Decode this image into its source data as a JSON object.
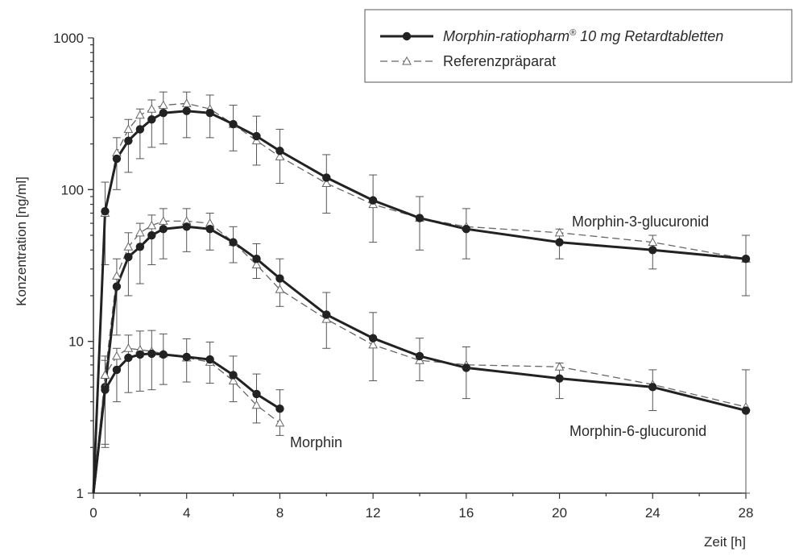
{
  "chart_data": {
    "type": "line",
    "yscale": "log",
    "xlim": [
      0,
      28
    ],
    "ylim": [
      1,
      1000
    ],
    "xticks": [
      "0",
      "4",
      "8",
      "12",
      "16",
      "20",
      "24",
      "28"
    ],
    "yticks": [
      "1",
      "10",
      "100",
      "1000"
    ],
    "xlabel": "Zeit [h]",
    "ylabel": "Konzentration [ng/ml]",
    "legend": {
      "placement": "top-right",
      "entries": [
        {
          "label_main": "Morphin-ratiopharm",
          "label_sup": "®",
          "label_rest": " 10 mg Retardtabletten",
          "style": "solid-filled-circle"
        },
        {
          "label_main": "Referenzpräparat",
          "style": "dashed-open-triangle"
        }
      ]
    },
    "annotations": {
      "m3g": "Morphin-3-glucuronid",
      "m6g": "Morphin-6-glucuronid",
      "morphin": "Morphin"
    },
    "groups": [
      {
        "key": "m3g",
        "test": {
          "x": [
            0,
            0.5,
            1,
            1.5,
            2,
            2.5,
            3,
            4,
            5,
            6,
            7,
            8,
            10,
            12,
            14,
            16,
            20,
            24,
            28
          ],
          "y": [
            1,
            72,
            160,
            210,
            250,
            290,
            320,
            330,
            320,
            270,
            225,
            180,
            120,
            85,
            65,
            55,
            45,
            40,
            35
          ],
          "err": [
            0,
            40,
            60,
            80,
            90,
            100,
            120,
            110,
            100,
            90,
            80,
            70,
            50,
            40,
            25,
            20,
            10,
            10,
            15
          ]
        },
        "ref": {
          "x": [
            0,
            0.5,
            1,
            1.5,
            2,
            2.5,
            3,
            4,
            5,
            6,
            7,
            8,
            10,
            12,
            14,
            16,
            20,
            24,
            28
          ],
          "y": [
            1,
            70,
            175,
            250,
            310,
            340,
            360,
            370,
            340,
            270,
            210,
            165,
            110,
            80,
            65,
            57,
            52,
            45,
            35
          ]
        }
      },
      {
        "key": "m6g",
        "test": {
          "x": [
            0,
            0.5,
            1,
            1.5,
            2,
            2.5,
            3,
            4,
            5,
            6,
            7,
            8,
            10,
            12,
            14,
            16,
            20,
            24,
            28
          ],
          "y": [
            1,
            5,
            23,
            36,
            42,
            50,
            55,
            57,
            55,
            45,
            35,
            26,
            15,
            10.5,
            8,
            6.7,
            5.7,
            5,
            3.5
          ],
          "err": [
            0,
            3,
            12,
            16,
            18,
            18,
            20,
            18,
            15,
            12,
            9,
            9,
            6,
            5,
            2.5,
            2.5,
            1.5,
            1.5,
            3
          ]
        },
        "ref": {
          "x": [
            0,
            0.5,
            1,
            1.5,
            2,
            2.5,
            3,
            4,
            5,
            6,
            7,
            8,
            10,
            12,
            14,
            16,
            20,
            24,
            28
          ],
          "y": [
            1,
            6,
            27,
            42,
            52,
            58,
            62,
            62,
            60,
            45,
            32,
            22,
            14,
            9.5,
            7.5,
            7,
            6.8,
            5.2,
            3.7
          ]
        }
      },
      {
        "key": "morphin",
        "test": {
          "x": [
            0,
            0.5,
            1,
            1.5,
            2,
            2.5,
            3,
            4,
            5,
            6,
            7,
            8
          ],
          "y": [
            1,
            4.8,
            6.5,
            7.8,
            8.2,
            8.3,
            8.2,
            7.9,
            7.6,
            6,
            4.5,
            3.6
          ],
          "err": [
            0,
            2.7,
            2.5,
            3.2,
            3.5,
            3.5,
            3,
            2.5,
            2.3,
            2,
            1.6,
            1.2
          ]
        },
        "ref": {
          "x": [
            0,
            0.5,
            1,
            1.5,
            2,
            2.5,
            3,
            4,
            5,
            6,
            7,
            8
          ],
          "y": [
            1,
            6,
            8,
            9,
            8.8,
            8.6,
            8.3,
            7.8,
            7.3,
            5.5,
            3.8,
            2.9
          ]
        }
      }
    ],
    "colors": {
      "test": "#222222",
      "ref": "#666666",
      "axis": "#333333"
    },
    "grid": false
  }
}
